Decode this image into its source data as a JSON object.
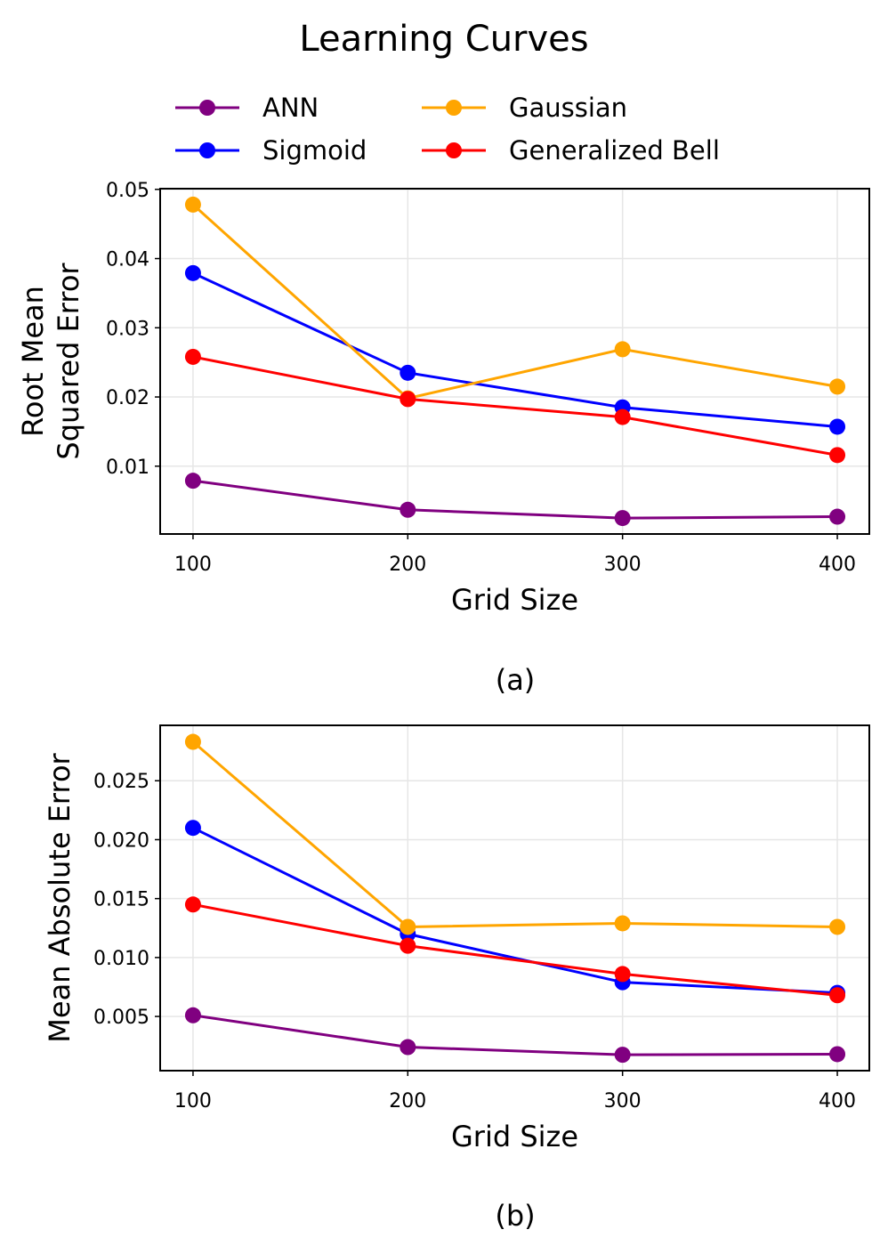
{
  "title": "Learning Curves",
  "legend": {
    "placement": "top",
    "columns": 2
  },
  "colors": {
    "ANN": "#800080",
    "Sigmoid": "#0000ff",
    "Gaussian": "#ffa500",
    "Generalized Bell": "#ff0000"
  },
  "chart_data": [
    {
      "type": "line",
      "caption": "(a)",
      "xlabel": "Grid Size",
      "ylabel_lines": [
        "Root Mean",
        "Squared Error"
      ],
      "x": [
        100,
        200,
        300,
        400
      ],
      "xticks": [
        "100",
        "200",
        "300",
        "400"
      ],
      "xlim": [
        84.7,
        414.9
      ],
      "yticks": [
        0.01,
        0.02,
        0.03,
        0.04,
        0.05
      ],
      "ytick_labels": [
        "0.01",
        "0.02",
        "0.03",
        "0.04",
        "0.05"
      ],
      "ylim": [
        0.0002,
        0.0501
      ],
      "grid": true,
      "series": [
        {
          "name": "ANN",
          "color": "#800080",
          "values": [
            0.0079,
            0.0037,
            0.0025,
            0.0027
          ]
        },
        {
          "name": "Sigmoid",
          "color": "#0000ff",
          "values": [
            0.0379,
            0.0235,
            0.0185,
            0.0157
          ]
        },
        {
          "name": "Gaussian",
          "color": "#ffa500",
          "values": [
            0.0478,
            0.0198,
            0.0269,
            0.0215
          ]
        },
        {
          "name": "Generalized Bell",
          "color": "#ff0000",
          "values": [
            0.0258,
            0.0197,
            0.0171,
            0.0116
          ]
        }
      ]
    },
    {
      "type": "line",
      "caption": "(b)",
      "xlabel": "Grid Size",
      "ylabel_lines": [
        "Mean Absolute Error"
      ],
      "x": [
        100,
        200,
        300,
        400
      ],
      "xticks": [
        "100",
        "200",
        "300",
        "400"
      ],
      "xlim": [
        84.7,
        414.9
      ],
      "yticks": [
        0.005,
        0.01,
        0.015,
        0.02,
        0.025
      ],
      "ytick_labels": [
        "0.005",
        "0.010",
        "0.015",
        "0.020",
        "0.025"
      ],
      "ylim": [
        0.0004,
        0.0297
      ],
      "grid": true,
      "series": [
        {
          "name": "ANN",
          "color": "#800080",
          "values": [
            0.0051,
            0.0024,
            0.00175,
            0.0018
          ]
        },
        {
          "name": "Sigmoid",
          "color": "#0000ff",
          "values": [
            0.021,
            0.012,
            0.0079,
            0.007
          ]
        },
        {
          "name": "Gaussian",
          "color": "#ffa500",
          "values": [
            0.0283,
            0.0126,
            0.0129,
            0.0126
          ]
        },
        {
          "name": "Generalized Bell",
          "color": "#ff0000",
          "values": [
            0.0145,
            0.011,
            0.0086,
            0.0068
          ]
        }
      ]
    }
  ]
}
